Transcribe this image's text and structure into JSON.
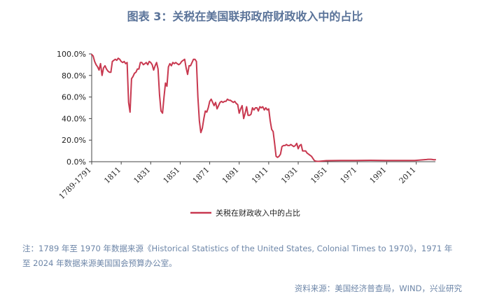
{
  "header": {
    "title": "图表 3：关税在美国联邦政府财政收入中的占比"
  },
  "footer": {
    "note_line1": "注：1789 年至 1970 年数据来源《Historical Statistics of the United States, Colonial Times to 1970》，1971 年",
    "note_line2": "至 2024 年数据来源美国国会预算办公室。",
    "source": "资料来源：美国经济普查局，WIND，兴业研究"
  },
  "chart_data": {
    "type": "line",
    "title": "图表 3：关税在美国联邦政府财政收入中的占比",
    "xlabel": "",
    "ylabel": "",
    "legend_position": "bottom",
    "grid": false,
    "x_tick_labels": [
      "1789-1791",
      "1811",
      "1831",
      "1851",
      "1871",
      "1891",
      "1911",
      "1931",
      "1951",
      "1971",
      "1991",
      "2011"
    ],
    "x_tick_years": [
      1791,
      1811,
      1831,
      1851,
      1871,
      1891,
      1911,
      1931,
      1951,
      1971,
      1991,
      2011
    ],
    "y_tick_labels": [
      "0.0%",
      "20.0%",
      "40.0%",
      "60.0%",
      "80.0%",
      "100.0%"
    ],
    "ylim": [
      0,
      100
    ],
    "xlim": [
      1791,
      2024
    ],
    "color": "#c8384f",
    "series": [
      {
        "name": "关税在财政收入中的占比",
        "x": [
          1791,
          1792,
          1793,
          1794,
          1795,
          1796,
          1797,
          1798,
          1799,
          1800,
          1801,
          1802,
          1803,
          1804,
          1805,
          1806,
          1807,
          1808,
          1809,
          1810,
          1811,
          1812,
          1813,
          1814,
          1815,
          1816,
          1817,
          1818,
          1819,
          1820,
          1821,
          1822,
          1823,
          1824,
          1825,
          1826,
          1827,
          1828,
          1829,
          1830,
          1831,
          1832,
          1833,
          1834,
          1835,
          1836,
          1837,
          1838,
          1839,
          1840,
          1841,
          1842,
          1843,
          1844,
          1845,
          1846,
          1847,
          1848,
          1849,
          1850,
          1851,
          1852,
          1853,
          1854,
          1855,
          1856,
          1857,
          1858,
          1859,
          1860,
          1861,
          1862,
          1863,
          1864,
          1865,
          1866,
          1867,
          1868,
          1869,
          1870,
          1871,
          1872,
          1873,
          1874,
          1875,
          1876,
          1877,
          1878,
          1879,
          1880,
          1881,
          1882,
          1883,
          1884,
          1885,
          1886,
          1887,
          1888,
          1889,
          1890,
          1891,
          1892,
          1893,
          1894,
          1895,
          1896,
          1897,
          1898,
          1899,
          1900,
          1901,
          1902,
          1903,
          1904,
          1905,
          1906,
          1907,
          1908,
          1909,
          1910,
          1911,
          1912,
          1913,
          1914,
          1915,
          1916,
          1917,
          1918,
          1919,
          1920,
          1921,
          1922,
          1923,
          1924,
          1925,
          1926,
          1927,
          1928,
          1929,
          1930,
          1931,
          1932,
          1933,
          1934,
          1935,
          1936,
          1937,
          1938,
          1939,
          1940,
          1941,
          1942,
          1943,
          1944,
          1945,
          1950,
          1960,
          1970,
          1980,
          1990,
          2000,
          2010,
          2018,
          2019,
          2020,
          2021,
          2022,
          2023,
          2024
        ],
        "values": [
          99.5,
          98,
          93,
          90,
          88,
          85,
          91,
          80,
          87,
          89,
          86,
          84,
          83,
          83,
          93,
          94,
          95,
          94,
          96,
          95,
          93,
          92,
          93,
          91,
          92,
          55,
          46,
          77,
          79,
          82,
          83,
          86,
          86,
          92,
          92,
          90,
          91,
          92,
          90,
          93,
          92,
          90,
          85,
          89,
          92,
          86,
          62,
          47,
          45,
          60,
          73,
          70,
          88,
          91,
          89,
          92,
          91,
          92,
          91,
          90,
          91,
          93,
          94,
          95,
          87,
          81,
          89,
          89,
          92,
          95,
          95,
          93,
          60,
          38,
          27,
          31,
          40,
          47,
          46,
          50,
          56,
          58,
          55,
          52,
          55,
          49,
          52,
          55,
          56,
          55,
          56,
          56,
          58,
          57,
          57,
          56,
          55,
          56,
          54,
          53,
          45,
          49,
          52,
          40,
          45,
          51,
          43,
          43,
          44,
          50,
          48,
          50,
          50,
          47,
          51,
          50,
          51,
          48,
          50,
          48,
          49,
          38,
          30,
          28,
          17,
          5,
          4,
          5,
          7,
          14,
          15,
          15,
          16,
          15,
          15,
          16,
          15,
          14,
          15,
          17,
          12,
          15,
          16,
          10,
          10,
          10,
          8,
          7,
          6,
          5,
          3,
          1,
          0.5,
          0.3,
          0.3,
          1,
          1.2,
          1.2,
          1.3,
          1.2,
          1.1,
          1.1,
          2,
          2.2,
          2.2,
          2.2,
          2,
          1.8,
          1.9
        ]
      }
    ]
  }
}
